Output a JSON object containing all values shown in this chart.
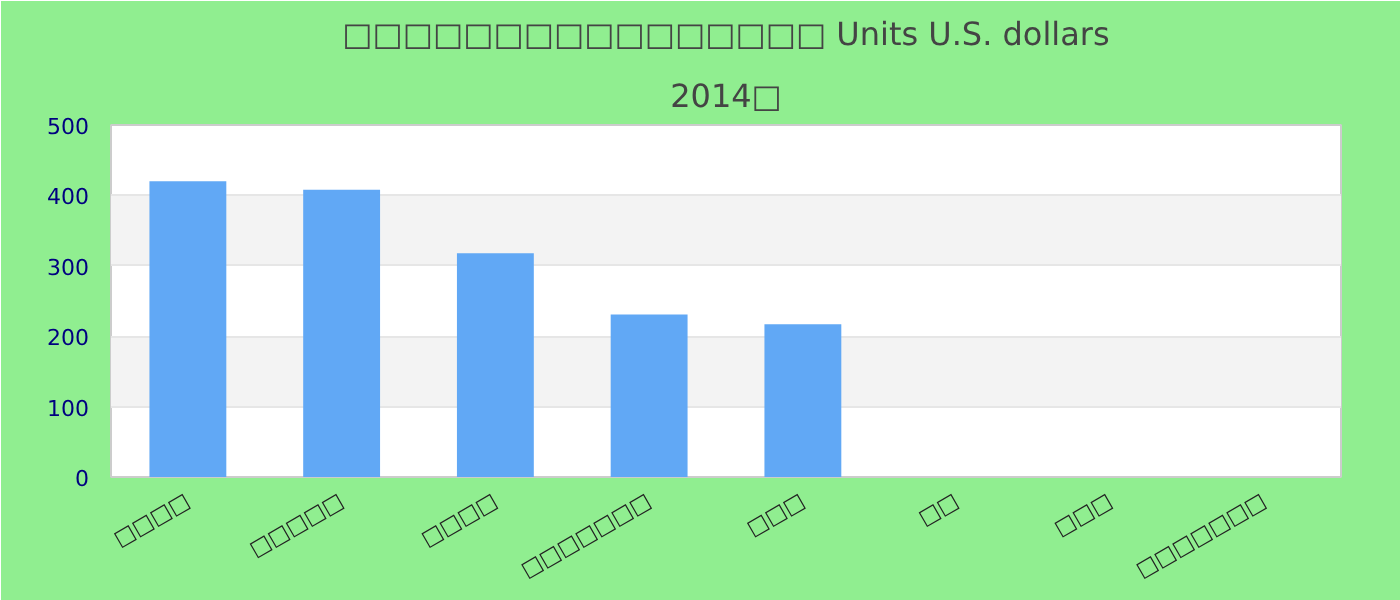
{
  "chart_data": {
    "type": "bar",
    "title": "□□□□□□□□□□□□□□□□ Units U.S. dollars",
    "subtitle": "2014□",
    "categories": [
      "□□□□",
      "□□□□□",
      "□□□□",
      "□□□□□□□",
      "□□□",
      "□□",
      "□□□",
      "□□□□□□□"
    ],
    "values": [
      420,
      408,
      318,
      231,
      217,
      null,
      null,
      null
    ],
    "color": "#61a8f5",
    "ylim": [
      0,
      500
    ],
    "yticks": [
      0,
      100,
      200,
      300,
      400,
      500
    ],
    "grid": "y"
  }
}
